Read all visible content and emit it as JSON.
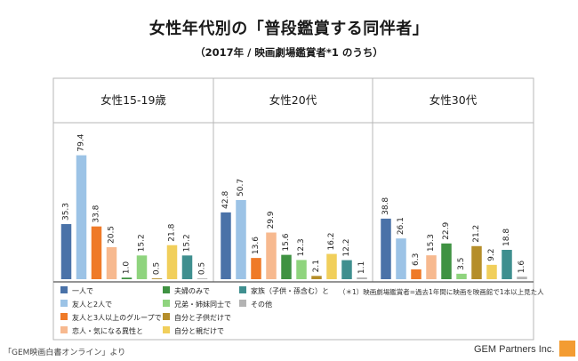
{
  "header": {
    "title": "女性年代別の「普段鑑賞する同伴者」",
    "subtitle": "（2017年 / 映画劇場鑑賞者*1 のうち）"
  },
  "footnote": "（＊1）映画劇場鑑賞者=過去1年間に映画を映画館で1本以上見た人",
  "source": "「GEM映画白書オンライン」より",
  "brand": "GEM Partners Inc.",
  "colors": {
    "一人で": "#4a72a8",
    "友人と2人で": "#9cc3e6",
    "友人と3人以上のグループで": "#ef7a28",
    "恋人・気になる異性と": "#f7b98f",
    "夫婦のみで": "#3f9242",
    "兄弟・姉妹同士で": "#8fd47e",
    "自分と子供だけで": "#b58e2a",
    "自分と親だけで": "#f1cf5b",
    "家族（子供・孫含む）と": "#3f8f8f",
    "その他": "#b3b3b3"
  },
  "chart_data": {
    "type": "bar",
    "groups": [
      "女性15-19歳",
      "女性20代",
      "女性30代"
    ],
    "series": [
      {
        "name": "一人で",
        "values": [
          35.3,
          42.8,
          38.8
        ]
      },
      {
        "name": "友人と2人で",
        "values": [
          79.4,
          50.7,
          26.1
        ]
      },
      {
        "name": "友人と3人以上のグループで",
        "values": [
          33.8,
          13.6,
          6.3
        ]
      },
      {
        "name": "恋人・気になる異性と",
        "values": [
          20.5,
          29.9,
          15.3
        ]
      },
      {
        "name": "夫婦のみで",
        "values": [
          1.0,
          15.6,
          22.9
        ]
      },
      {
        "name": "兄弟・姉妹同士で",
        "values": [
          15.2,
          12.3,
          3.5
        ]
      },
      {
        "name": "自分と子供だけで",
        "values": [
          0.5,
          2.1,
          21.2
        ]
      },
      {
        "name": "自分と親だけで",
        "values": [
          21.8,
          16.2,
          9.2
        ]
      },
      {
        "name": "家族（子供・孫含む）と",
        "values": [
          15.2,
          12.2,
          18.8
        ]
      },
      {
        "name": "その他",
        "values": [
          0.5,
          1.1,
          1.6
        ]
      }
    ],
    "ylim": [
      0,
      90
    ],
    "grid": false,
    "legend_position": "bottom"
  }
}
